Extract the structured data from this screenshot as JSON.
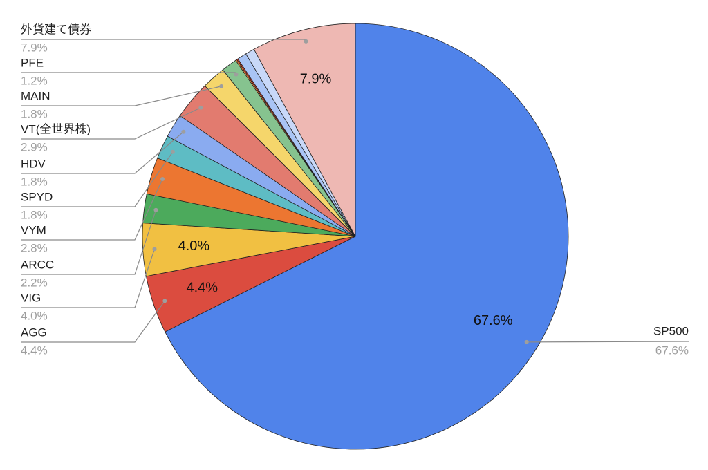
{
  "chart_data": {
    "type": "pie",
    "categories": [
      "SP500",
      "AGG",
      "VIG",
      "ARCC",
      "VYM",
      "SPYD",
      "HDV",
      "VT(全世界株)",
      "MAIN",
      "PFE",
      null,
      null,
      null,
      null,
      "外貨建て債券"
    ],
    "values": [
      67.6,
      4.4,
      4.0,
      2.2,
      2.8,
      1.8,
      1.8,
      2.9,
      1.8,
      1.2,
      0.1,
      0.1,
      0.7,
      0.7,
      7.9
    ],
    "value_labels": [
      "67.6%",
      "4.4%",
      "4.0%",
      "2.2%",
      "2.8%",
      "1.8%",
      "1.8%",
      "2.9%",
      "1.8%",
      "1.2%",
      null,
      null,
      null,
      null,
      "7.9%"
    ],
    "colors": [
      "#5083ea",
      "#db4c3f",
      "#f1c042",
      "#4caa5c",
      "#ec7631",
      "#5ebcc4",
      "#8aabf0",
      "#e27b6f",
      "#f5d66b",
      "#86c38f",
      "#f08a3c",
      "#c0392b",
      "#a9c4f5",
      "#c8d8f8",
      "#eeb8b3"
    ]
  }
}
